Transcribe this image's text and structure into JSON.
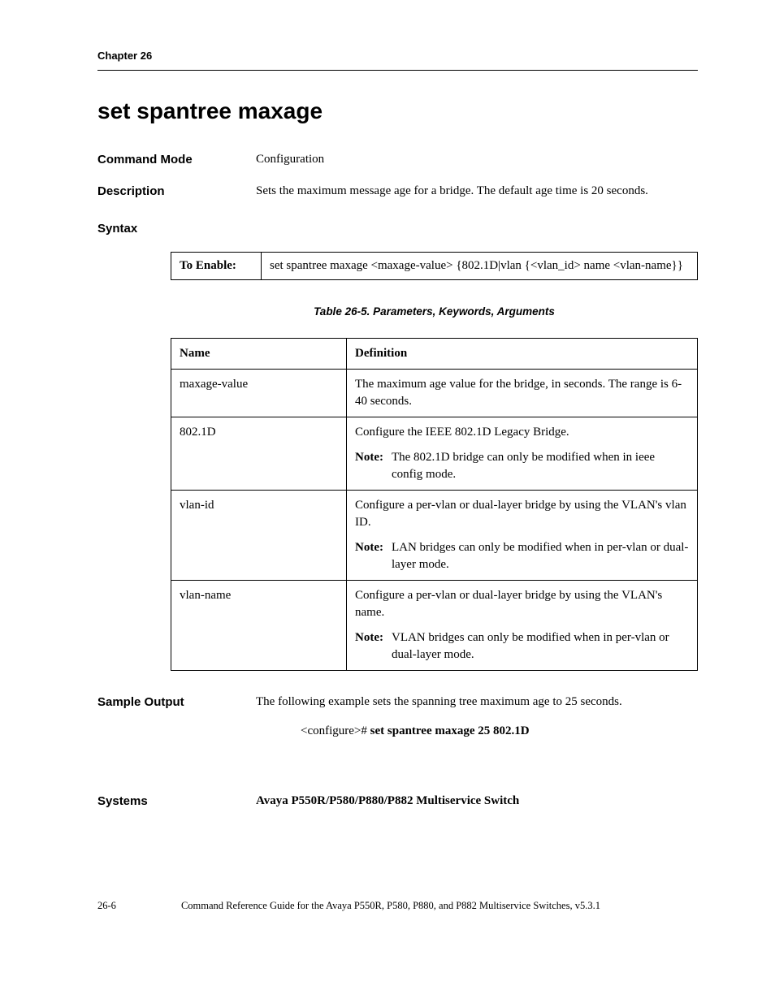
{
  "header": {
    "chapter": "Chapter 26"
  },
  "title": "set spantree maxage",
  "command_mode": {
    "label": "Command Mode",
    "value": "Configuration"
  },
  "description": {
    "label": "Description",
    "value": "Sets the maximum message age for a bridge. The default age time is 20 seconds."
  },
  "syntax": {
    "heading": "Syntax",
    "enable_label": "To Enable:",
    "enable_value": "set spantree maxage <maxage-value> {802.1D|vlan {<vlan_id> name <vlan-name}}"
  },
  "param_table": {
    "caption": "Table 26-5.  Parameters, Keywords, Arguments",
    "columns": [
      "Name",
      "Definition"
    ],
    "rows": [
      {
        "name": "maxage-value",
        "definition": "The maximum age value for the bridge, in seconds. The range is 6-40 seconds.",
        "note": null
      },
      {
        "name": "802.1D",
        "definition": "Configure the IEEE 802.1D Legacy Bridge.",
        "note": "The 802.1D bridge can only be modified when in ieee config mode."
      },
      {
        "name": "vlan-id",
        "definition": "Configure a per-vlan or dual-layer bridge by using the VLAN's vlan ID.",
        "note": "LAN bridges can only be modified when in per-vlan or dual-layer mode."
      },
      {
        "name": "vlan-name",
        "definition": "Configure a per-vlan or dual-layer bridge by using the VLAN's name.",
        "note": "VLAN bridges can only be modified when in per-vlan or dual-layer mode."
      }
    ],
    "note_label": "Note:"
  },
  "sample_output": {
    "label": "Sample Output",
    "intro": "The following example sets the spanning tree maximum age to 25 seconds.",
    "prompt": "<configure># ",
    "command": "set spantree maxage 25 802.1D"
  },
  "systems": {
    "label": "Systems",
    "value": "Avaya P550R/P580/P880/P882 Multiservice Switch"
  },
  "footer": {
    "page": "26-6",
    "text": "Command Reference Guide for the Avaya P550R, P580, P880, and P882 Multiservice Switches, v5.3.1"
  }
}
